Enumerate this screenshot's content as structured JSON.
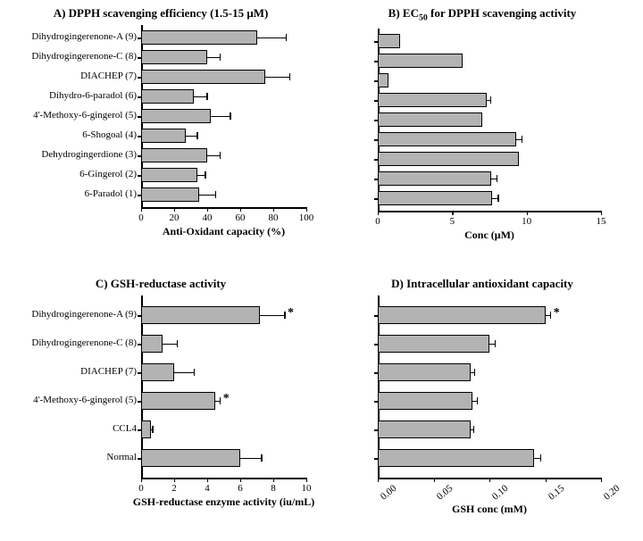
{
  "global": {
    "bar_fill": "#b3b3b3",
    "bar_stroke": "#000000",
    "axis_color": "#000000",
    "background_color": "#ffffff"
  },
  "panelA": {
    "title": "A) DPPH scavenging efficiency (1.5-15 μM)",
    "xlabel": "Anti-Oxidant capacity (%)",
    "xlim": [
      0,
      100
    ],
    "xtick_step": 20,
    "bar_fill": "#b3b3b3",
    "bar_stroke": "#000000",
    "categories": [
      "Dihydrogingerenone-A (9)",
      "Dihydrogingerenone-C (8)",
      "DIACHEP (7)",
      "Dihydro-6-paradol (6)",
      "4'-Methoxy-6-gingerol (5)",
      "6-Shogoal (4)",
      "Dehydrogingerdione (3)",
      "6-Gingerol (2)",
      "6-Paradol (1)"
    ],
    "values": [
      70,
      40,
      75,
      32,
      42,
      27,
      40,
      34,
      35
    ],
    "errors": [
      18,
      8,
      15,
      8,
      12,
      7,
      8,
      5,
      10
    ]
  },
  "panelB": {
    "title_html": "B) EC<span class='sub'>50</span> for DPPH scavenging activity",
    "xlabel": "Conc (μM)",
    "xlim": [
      0,
      15
    ],
    "xtick_step": 5,
    "bar_fill": "#b3b3b3",
    "bar_stroke": "#000000",
    "values": [
      1.5,
      5.7,
      0.7,
      7.3,
      7.0,
      9.3,
      9.5,
      7.6,
      7.7
    ],
    "errors": [
      0,
      0,
      0,
      0.3,
      0,
      0.4,
      0,
      0.4,
      0.4
    ]
  },
  "panelC": {
    "title": "C) GSH-reductase activity",
    "xlabel": "GSH-reductase enzyme activity (iu/mL)",
    "xlim": [
      0,
      10
    ],
    "xtick_step": 2,
    "bar_fill": "#b3b3b3",
    "bar_stroke": "#000000",
    "categories": [
      "Dihydrogingerenone-A (9)",
      "Dihydrogingerenone-C (8)",
      "DIACHEP (7)",
      "4'-Methoxy-6-gingerol (5)",
      "CCL4",
      "Normal"
    ],
    "values": [
      7.2,
      1.3,
      2.0,
      4.5,
      0.6,
      6.0
    ],
    "errors": [
      1.5,
      0.9,
      1.2,
      0.3,
      0.1,
      1.3
    ],
    "significance": {
      "0": "*",
      "3": "*"
    }
  },
  "panelD": {
    "title": "D) Intracellular antioxidant capacity",
    "xlabel": "GSH conc (mM)",
    "xlim": [
      0,
      0.2
    ],
    "xticks": [
      0.0,
      0.05,
      0.1,
      0.15,
      0.2
    ],
    "xtick_labels": [
      "0.00",
      "0.05",
      "0.10",
      "0.15",
      "0.20"
    ],
    "bar_fill": "#b3b3b3",
    "bar_stroke": "#000000",
    "values": [
      0.15,
      0.1,
      0.083,
      0.085,
      0.083,
      0.14
    ],
    "errors": [
      0.005,
      0.005,
      0.004,
      0.004,
      0.003,
      0.006
    ],
    "significance": {
      "0": "*"
    },
    "rotated_ticks": true
  }
}
